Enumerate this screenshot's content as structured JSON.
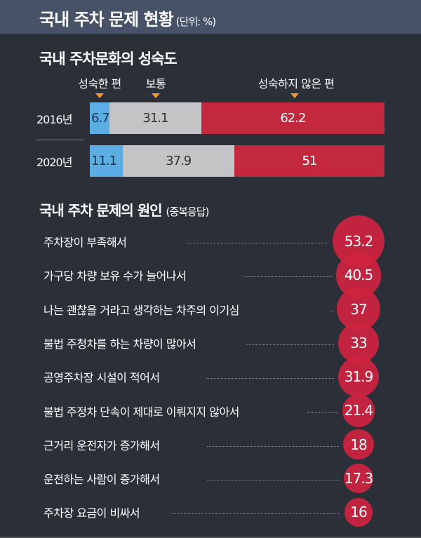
{
  "header": {
    "title": "국내 주차 문제 현황",
    "unit": "(단위: %)"
  },
  "colors": {
    "mature": "#5aaee3",
    "normal": "#c4c4c6",
    "immature": "#c3283e",
    "bubble": "#cd2440",
    "arrow": "#f19a24"
  },
  "chart_data": [
    {
      "type": "bar",
      "subtype": "stacked-horizontal-100",
      "title": "국내 주차문화의 성숙도",
      "categories": [
        "2016년",
        "2020년"
      ],
      "series": [
        {
          "name": "성숙한 편",
          "values": [
            6.7,
            11.1
          ]
        },
        {
          "name": "보통",
          "values": [
            31.1,
            37.9
          ]
        },
        {
          "name": "성숙하지 않은 편",
          "values": [
            62.2,
            51
          ]
        }
      ],
      "value_labels": [
        [
          "6.7",
          "31.1",
          "62.2"
        ],
        [
          "11.1",
          "37.9",
          "51"
        ]
      ]
    },
    {
      "type": "scatter",
      "subtype": "bubble-list",
      "title": "국내 주차 문제의 원인",
      "note": "(중복응답)",
      "categories": [
        "주차장이 부족해서",
        "가구당 차량 보유 수가 늘어나서",
        "나는 괜찮을 거라고 생각하는 차주의 이기심",
        "불법 주청차를 하는 차량이 많아서",
        "공영주차장 시설이 적어서",
        "불법 주정차 단속이 제대로 이뤄지지 않아서",
        "근거리 운전자가 증가해서",
        "운전하는 사람이 증가해서",
        "주차장 요금이 비싸서"
      ],
      "values": [
        53.2,
        40.5,
        37,
        33,
        31.9,
        21.4,
        18,
        17.3,
        16
      ],
      "value_labels": [
        "53.2",
        "40.5",
        "37",
        "33",
        "31.9",
        "21.4",
        "18",
        "17.3",
        "16"
      ]
    }
  ]
}
